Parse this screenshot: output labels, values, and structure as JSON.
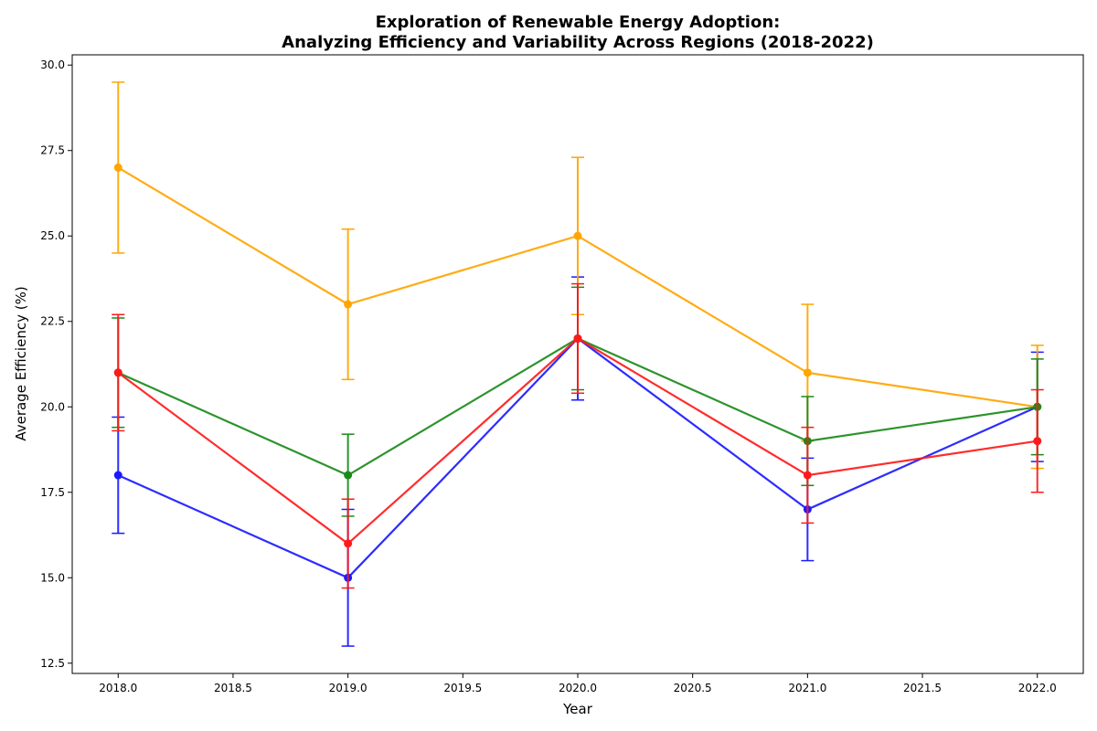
{
  "chart_data": {
    "type": "line",
    "title_lines": [
      "Exploration of Renewable Energy Adoption:",
      "Analyzing Efficiency and Variability Across Regions (2018-2022)"
    ],
    "xlabel": "Year",
    "ylabel": "Average Efficiency (%)",
    "x": [
      2018,
      2019,
      2020,
      2021,
      2022
    ],
    "xlim": [
      2017.8,
      2022.2
    ],
    "ylim": [
      12.2,
      30.3
    ],
    "x_ticks": [
      2018.0,
      2018.5,
      2019.0,
      2019.5,
      2020.0,
      2020.5,
      2021.0,
      2021.5,
      2022.0
    ],
    "x_tick_labels": [
      "2018.0",
      "2018.5",
      "2019.0",
      "2019.5",
      "2020.0",
      "2020.5",
      "2021.0",
      "2021.5",
      "2022.0"
    ],
    "y_ticks": [
      12.5,
      15.0,
      17.5,
      20.0,
      22.5,
      25.0,
      27.5,
      30.0
    ],
    "y_tick_labels": [
      "12.5",
      "15.0",
      "17.5",
      "20.0",
      "22.5",
      "25.0",
      "27.5",
      "30.0"
    ],
    "grid": false,
    "series": [
      {
        "color": "#1a1aff",
        "values": [
          18,
          15,
          22,
          17,
          20
        ],
        "errors": [
          1.7,
          2.0,
          1.8,
          1.5,
          1.6
        ]
      },
      {
        "color": "#ffa500",
        "values": [
          27,
          23,
          25,
          21,
          20
        ],
        "errors": [
          2.5,
          2.2,
          2.3,
          2.0,
          1.8
        ]
      },
      {
        "color": "#1a8a1a",
        "values": [
          21,
          18,
          22,
          19,
          20
        ],
        "errors": [
          1.6,
          1.2,
          1.5,
          1.3,
          1.4
        ]
      },
      {
        "color": "#ff1a1a",
        "values": [
          21,
          16,
          22,
          18,
          19
        ],
        "errors": [
          1.7,
          1.3,
          1.6,
          1.4,
          1.5
        ]
      }
    ]
  }
}
